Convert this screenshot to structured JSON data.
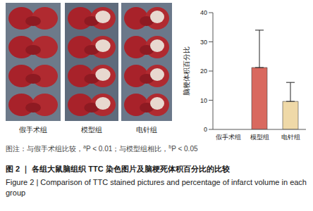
{
  "photo_panel": {
    "labels": [
      "假手术组",
      "模型组",
      "电针组"
    ]
  },
  "chart_data": {
    "type": "bar",
    "y_label": "脑梗体积百分比",
    "categories": [
      "假手术组",
      "模型组",
      "电针组"
    ],
    "values": [
      0,
      21.2,
      9.6
    ],
    "errors": [
      0,
      12.8,
      6.5
    ],
    "colors": [
      "#bfbfbf",
      "#d9695f",
      "#efd9a8"
    ],
    "ylim": [
      0,
      40
    ],
    "yticks": [
      0,
      10,
      20,
      30,
      40
    ],
    "grid": false
  },
  "footnote": [
    {
      "text": "图注：与假手术组比较，"
    },
    {
      "sup": "a"
    },
    {
      "text": "P < 0.01；与模型组相比，"
    },
    {
      "sup": "b"
    },
    {
      "text": "P < 0.05"
    }
  ],
  "caption_zh": "图 2 ｜ 各组大鼠脑组织 TTC 染色图片及脑梗死体积百分比的比较",
  "caption_en": "Figure 2 | Comparison of TTC stained pictures and percentage of infarct volume in each group"
}
